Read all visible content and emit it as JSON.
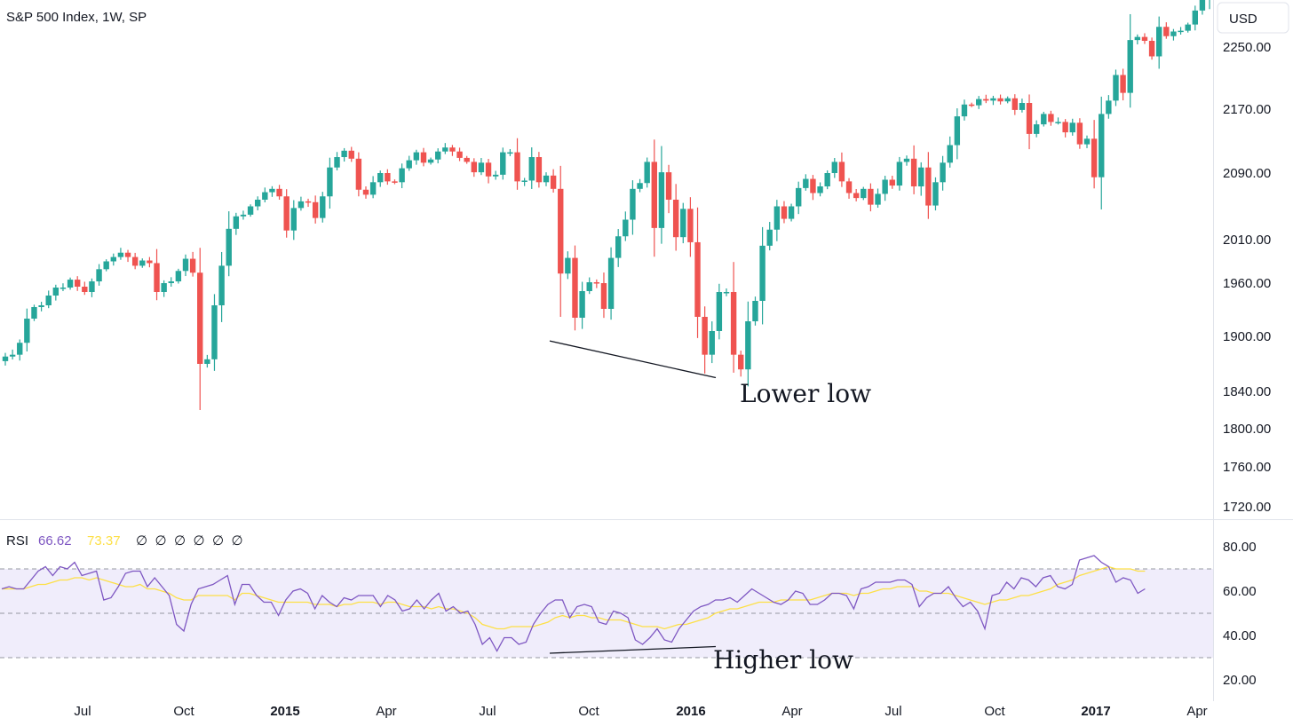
{
  "header": {
    "symbol": "S&P 500 Index, 1W, SP",
    "currency": "USD"
  },
  "rsi_legend": {
    "name": "RSI",
    "value": "66.62",
    "ma_value": "73.37",
    "placeholders": [
      "∅",
      "∅",
      "∅",
      "∅",
      "∅",
      "∅"
    ]
  },
  "annotations": {
    "price": "Lower low",
    "rsi": "Higher low"
  },
  "colors": {
    "up": "#26a69a",
    "down": "#ef5350",
    "rsi_line": "#7e57c2",
    "rsi_ma": "#fde047",
    "rsi_band": "#f0edfb"
  },
  "chart_data": [
    {
      "type": "candlestick",
      "title": "S&P 500 Index, 1W, SP",
      "y_ticks": [
        "2250.00",
        "2170.00",
        "2090.00",
        "2010.00",
        "1960.00",
        "1900.00",
        "1840.00",
        "1800.00",
        "1760.00",
        "1720.00"
      ],
      "x_ticks": [
        "Jul",
        "Oct",
        "2015",
        "Apr",
        "Jul",
        "Oct",
        "2016",
        "Apr",
        "Jul",
        "Oct",
        "2017",
        "Apr"
      ],
      "bold_x_ticks": [
        "2015",
        "2016",
        "2017"
      ],
      "trend_line": [
        [
          1846,
          1895
        ],
        [
          1879,
          1855
        ]
      ],
      "close_path": [
        [
          0,
          1873
        ],
        [
          1,
          1878
        ],
        [
          2,
          1880
        ],
        [
          3,
          1893
        ],
        [
          4,
          1920
        ],
        [
          5,
          1933
        ],
        [
          6,
          1935
        ],
        [
          7,
          1946
        ],
        [
          8,
          1955
        ],
        [
          9,
          1955
        ],
        [
          10,
          1964
        ],
        [
          11,
          1956
        ],
        [
          12,
          1950
        ],
        [
          13,
          1962
        ],
        [
          14,
          1976
        ],
        [
          15,
          1985
        ],
        [
          16,
          1990
        ],
        [
          17,
          1995
        ],
        [
          18,
          1990
        ],
        [
          19,
          1980
        ],
        [
          20,
          1986
        ],
        [
          21,
          1983
        ],
        [
          22,
          1950
        ],
        [
          23,
          1960
        ],
        [
          24,
          1962
        ],
        [
          25,
          1974
        ],
        [
          26,
          1988
        ],
        [
          27,
          1972
        ],
        [
          28,
          1870
        ],
        [
          29,
          1875
        ],
        [
          30,
          1935
        ],
        [
          31,
          1980
        ],
        [
          32,
          2023
        ],
        [
          33,
          2038
        ],
        [
          34,
          2040
        ],
        [
          35,
          2050
        ],
        [
          36,
          2058
        ],
        [
          37,
          2067
        ],
        [
          38,
          2071
        ],
        [
          39,
          2062
        ],
        [
          40,
          2021
        ],
        [
          41,
          2048
        ],
        [
          42,
          2056
        ],
        [
          43,
          2055
        ],
        [
          44,
          2036
        ],
        [
          45,
          2062
        ],
        [
          46,
          2097
        ],
        [
          47,
          2110
        ],
        [
          48,
          2118
        ],
        [
          49,
          2108
        ],
        [
          50,
          2070
        ],
        [
          51,
          2064
        ],
        [
          52,
          2079
        ],
        [
          53,
          2090
        ],
        [
          54,
          2080
        ],
        [
          55,
          2079
        ],
        [
          56,
          2096
        ],
        [
          57,
          2106
        ],
        [
          58,
          2116
        ],
        [
          59,
          2103
        ],
        [
          60,
          2107
        ],
        [
          61,
          2117
        ],
        [
          62,
          2122
        ],
        [
          63,
          2117
        ],
        [
          64,
          2109
        ],
        [
          65,
          2104
        ],
        [
          66,
          2091
        ],
        [
          67,
          2103
        ],
        [
          68,
          2086
        ],
        [
          69,
          2088
        ],
        [
          70,
          2116
        ],
        [
          71,
          2116
        ],
        [
          72,
          2080
        ],
        [
          73,
          2081
        ],
        [
          74,
          2110
        ],
        [
          75,
          2079
        ],
        [
          76,
          2087
        ],
        [
          77,
          2071
        ],
        [
          78,
          1971
        ],
        [
          79,
          1989
        ],
        [
          80,
          1921
        ],
        [
          81,
          1951
        ],
        [
          82,
          1961
        ],
        [
          83,
          1960
        ],
        [
          84,
          1931
        ],
        [
          85,
          1989
        ],
        [
          86,
          2014
        ],
        [
          87,
          2034
        ],
        [
          88,
          2071
        ],
        [
          89,
          2078
        ],
        [
          90,
          2104
        ],
        [
          91,
          2024
        ],
        [
          92,
          2091
        ],
        [
          93,
          2058
        ],
        [
          94,
          2013
        ],
        [
          95,
          2047
        ],
        [
          96,
          2007
        ],
        [
          97,
          1922
        ],
        [
          98,
          1880
        ],
        [
          99,
          1906
        ],
        [
          100,
          1950
        ],
        [
          101,
          1950
        ],
        [
          102,
          1880
        ],
        [
          103,
          1864
        ],
        [
          104,
          1917
        ],
        [
          105,
          1940
        ],
        [
          106,
          2003
        ],
        [
          107,
          2022
        ],
        [
          108,
          2050
        ],
        [
          109,
          2035
        ],
        [
          110,
          2050
        ],
        [
          111,
          2072
        ],
        [
          112,
          2083
        ],
        [
          113,
          2066
        ],
        [
          114,
          2074
        ],
        [
          115,
          2090
        ],
        [
          116,
          2104
        ],
        [
          117,
          2080
        ],
        [
          118,
          2066
        ],
        [
          119,
          2060
        ],
        [
          120,
          2071
        ],
        [
          121,
          2052
        ],
        [
          122,
          2065
        ],
        [
          123,
          2082
        ],
        [
          124,
          2075
        ],
        [
          125,
          2104
        ],
        [
          126,
          2108
        ],
        [
          127,
          2074
        ],
        [
          128,
          2097
        ],
        [
          129,
          2051
        ],
        [
          130,
          2079
        ],
        [
          131,
          2103
        ],
        [
          132,
          2125
        ],
        [
          133,
          2161
        ],
        [
          134,
          2176
        ],
        [
          135,
          2175
        ],
        [
          136,
          2183
        ],
        [
          137,
          2181
        ],
        [
          138,
          2184
        ],
        [
          139,
          2180
        ],
        [
          140,
          2184
        ],
        [
          141,
          2169
        ],
        [
          142,
          2178
        ],
        [
          143,
          2139
        ],
        [
          144,
          2151
        ],
        [
          145,
          2164
        ],
        [
          146,
          2154
        ],
        [
          147,
          2154
        ],
        [
          148,
          2141
        ],
        [
          149,
          2153
        ],
        [
          150,
          2126
        ],
        [
          151,
          2133
        ],
        [
          152,
          2085
        ],
        [
          153,
          2164
        ],
        [
          154,
          2181
        ],
        [
          155,
          2214
        ],
        [
          156,
          2191
        ],
        [
          157,
          2259
        ],
        [
          158,
          2263
        ],
        [
          159,
          2258
        ],
        [
          160,
          2238
        ],
        [
          161,
          2276
        ],
        [
          162,
          2264
        ],
        [
          163,
          2270
        ],
        [
          164,
          2271
        ],
        [
          165,
          2279
        ],
        [
          166,
          2297
        ],
        [
          167,
          2316
        ],
        [
          168,
          2351
        ]
      ]
    },
    {
      "type": "line",
      "title": "RSI",
      "y_ticks": [
        "80.00",
        "60.00",
        "40.00",
        "20.00"
      ],
      "levels": [
        70,
        50,
        30
      ],
      "trend_line": [
        [
          30,
          32
        ],
        [
          40,
          35
        ]
      ],
      "series": [
        {
          "name": "RSI",
          "values": [
            61,
            62,
            61,
            61,
            65,
            69,
            71,
            67,
            71,
            70,
            73,
            67,
            68,
            69,
            56,
            57,
            62,
            68,
            69,
            69,
            62,
            66,
            62,
            58,
            45,
            42,
            54,
            61,
            62,
            63,
            65,
            67,
            54,
            63,
            63,
            58,
            55,
            55,
            49,
            56,
            60,
            61,
            59,
            52,
            58,
            55,
            53,
            57,
            56,
            58,
            58,
            58,
            53,
            58,
            56,
            51,
            52,
            56,
            52,
            56,
            59,
            51,
            53,
            50,
            51,
            45,
            36,
            39,
            33,
            39,
            39,
            36,
            37,
            45,
            50,
            54,
            56,
            56,
            48,
            53,
            54,
            53,
            46,
            45,
            51,
            50,
            48,
            38,
            36,
            39,
            43,
            38,
            37,
            43,
            47,
            51,
            53,
            54,
            56,
            56,
            57,
            55,
            58,
            61,
            59,
            57,
            55,
            54,
            56,
            60,
            59,
            54,
            54,
            56,
            59,
            59,
            58,
            52,
            61,
            62,
            64,
            64,
            64,
            65,
            65,
            63,
            53,
            57,
            59,
            59,
            62,
            57,
            53,
            55,
            51,
            43,
            58,
            59,
            64,
            61,
            66,
            65,
            62,
            66,
            67,
            62,
            61,
            63,
            74,
            75,
            76,
            73,
            71,
            64,
            66,
            65,
            59,
            61
          ],
          "color": "#7e57c2"
        },
        {
          "name": "RSI MA",
          "values": [
            61,
            61,
            61,
            61,
            62,
            63,
            63,
            64,
            65,
            65,
            66,
            66,
            65,
            66,
            65,
            64,
            63,
            62,
            62,
            63,
            61,
            61,
            60,
            59,
            57,
            56,
            56,
            58,
            58,
            58,
            58,
            58,
            56,
            59,
            59,
            58,
            57,
            56,
            55,
            55,
            55,
            55,
            55,
            54,
            54,
            54,
            53,
            54,
            54,
            55,
            55,
            55,
            54,
            55,
            55,
            54,
            53,
            53,
            53,
            52,
            53,
            52,
            52,
            51,
            50,
            48,
            45,
            44,
            43,
            43,
            44,
            44,
            44,
            44,
            45,
            46,
            48,
            49,
            48,
            49,
            49,
            48,
            48,
            47,
            47,
            47,
            46,
            45,
            44,
            44,
            44,
            43,
            44,
            45,
            45,
            46,
            47,
            48,
            50,
            51,
            52,
            52,
            53,
            54,
            55,
            55,
            55,
            56,
            56,
            56,
            56,
            56,
            57,
            58,
            59,
            59,
            59,
            58,
            59,
            59,
            60,
            61,
            61,
            62,
            62,
            62,
            60,
            60,
            59,
            59,
            59,
            58,
            57,
            56,
            55,
            54,
            55,
            56,
            56,
            57,
            58,
            58,
            59,
            60,
            61,
            63,
            64,
            65,
            67,
            68,
            69,
            70,
            71,
            70,
            70,
            70,
            69,
            69
          ],
          "color": "#fde047"
        }
      ]
    }
  ]
}
